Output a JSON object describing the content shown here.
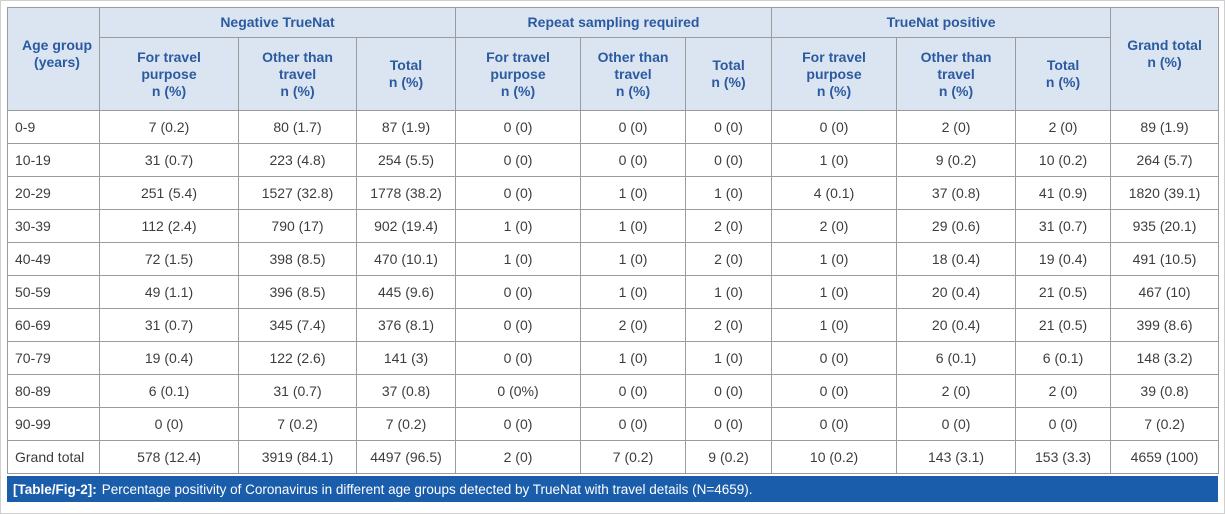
{
  "colors": {
    "header_bg": "#dbe5f2",
    "header_text": "#2b5aa0",
    "body_text": "#3d3d3d",
    "border": "#9b9b9b",
    "caption_bg": "#1a5dab",
    "caption_text": "#ffffff"
  },
  "table": {
    "age_group_header": {
      "line1": "Age group",
      "line2": "(years)"
    },
    "grand_total_header": {
      "line1": "Grand total",
      "line2": "n (%)"
    },
    "groups": [
      {
        "label": "Negative TrueNat"
      },
      {
        "label": "Repeat sampling required"
      },
      {
        "label": "TrueNat positive"
      }
    ],
    "sub_columns": [
      {
        "label": "For travel purpose",
        "unit": "n (%)"
      },
      {
        "label": "Other than travel",
        "unit": "n (%)"
      },
      {
        "label": "Total",
        "unit": "n (%)"
      }
    ],
    "rows": [
      {
        "age_group": "0-9",
        "cells": [
          "7 (0.2)",
          "80 (1.7)",
          "87 (1.9)",
          "0 (0)",
          "0 (0)",
          "0 (0)",
          "0 (0)",
          "2 (0)",
          "2 (0)",
          "89 (1.9)"
        ]
      },
      {
        "age_group": "10-19",
        "cells": [
          "31 (0.7)",
          "223 (4.8)",
          "254 (5.5)",
          "0 (0)",
          "0 (0)",
          "0 (0)",
          "1 (0)",
          "9 (0.2)",
          "10 (0.2)",
          "264 (5.7)"
        ]
      },
      {
        "age_group": "20-29",
        "cells": [
          "251 (5.4)",
          "1527 (32.8)",
          "1778 (38.2)",
          "0 (0)",
          "1 (0)",
          "1 (0)",
          "4 (0.1)",
          "37 (0.8)",
          "41 (0.9)",
          "1820 (39.1)"
        ]
      },
      {
        "age_group": "30-39",
        "cells": [
          "112 (2.4)",
          "790 (17)",
          "902 (19.4)",
          "1 (0)",
          "1 (0)",
          "2 (0)",
          "2 (0)",
          "29 (0.6)",
          "31 (0.7)",
          "935 (20.1)"
        ]
      },
      {
        "age_group": "40-49",
        "cells": [
          "72 (1.5)",
          "398 (8.5)",
          "470 (10.1)",
          "1 (0)",
          "1 (0)",
          "2 (0)",
          "1 (0)",
          "18 (0.4)",
          "19 (0.4)",
          "491 (10.5)"
        ]
      },
      {
        "age_group": "50-59",
        "cells": [
          "49 (1.1)",
          "396 (8.5)",
          "445 (9.6)",
          "0 (0)",
          "1 (0)",
          "1 (0)",
          "1 (0)",
          "20 (0.4)",
          "21 (0.5)",
          "467 (10)"
        ]
      },
      {
        "age_group": "60-69",
        "cells": [
          "31 (0.7)",
          "345 (7.4)",
          "376 (8.1)",
          "0 (0)",
          "2 (0)",
          "2 (0)",
          "1 (0)",
          "20 (0.4)",
          "21 (0.5)",
          "399 (8.6)"
        ]
      },
      {
        "age_group": "70-79",
        "cells": [
          "19 (0.4)",
          "122 (2.6)",
          "141 (3)",
          "0 (0)",
          "1 (0)",
          "1 (0)",
          "0 (0)",
          "6 (0.1)",
          "6 (0.1)",
          "148 (3.2)"
        ]
      },
      {
        "age_group": "80-89",
        "cells": [
          "6 (0.1)",
          "31 (0.7)",
          "37 (0.8)",
          "0 (0%)",
          "0 (0)",
          "0 (0)",
          "0 (0)",
          "2 (0)",
          "2 (0)",
          "39 (0.8)"
        ]
      },
      {
        "age_group": "90-99",
        "cells": [
          "0 (0)",
          "7 (0.2)",
          "7 (0.2)",
          "0 (0)",
          "0 (0)",
          "0 (0)",
          "0 (0)",
          "0 (0)",
          "0 (0)",
          "7 (0.2)"
        ]
      },
      {
        "age_group": "Grand total",
        "cells": [
          "578 (12.4)",
          "3919 (84.1)",
          "4497 (96.5)",
          "2 (0)",
          "7 (0.2)",
          "9 (0.2)",
          "10 (0.2)",
          "143 (3.1)",
          "153 (3.3)",
          "4659 (100)"
        ]
      }
    ]
  },
  "caption": {
    "tag": "[Table/Fig-2]:",
    "text": "Percentage positivity of Coronavirus in different age groups detected by TrueNat with travel details (N=4659)."
  }
}
